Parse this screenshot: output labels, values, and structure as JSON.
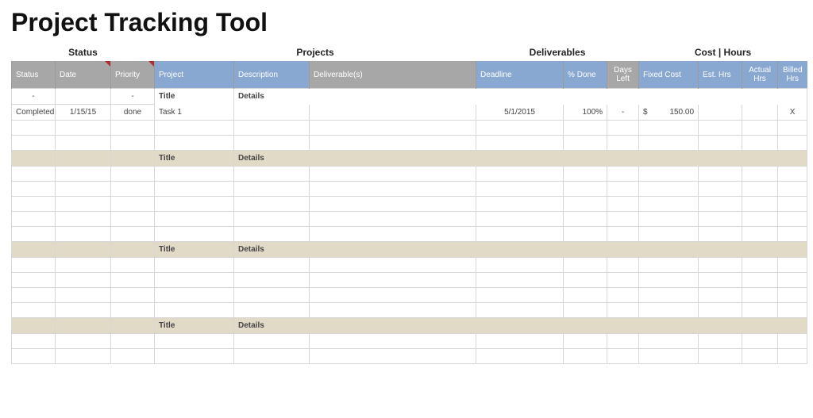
{
  "title": "Project Tracking Tool",
  "sections": {
    "status": "Status",
    "projects": "Projects",
    "deliverables": "Deliverables",
    "costhours": "Cost | Hours"
  },
  "headers": {
    "status": "Status",
    "date": "Date",
    "priority": "Priority",
    "project": "Project",
    "description": "Description",
    "deliverables": "Deliverable(s)",
    "deadline": "Deadline",
    "pdone": "% Done",
    "daysleft": "Days Left",
    "fixedcost": "Fixed Cost",
    "esthrs": "Est. Hrs",
    "acthrs": "Actual Hrs",
    "billhrs": "Billed Hrs"
  },
  "group_title_label": "Title",
  "group_details_label": "Details",
  "placeholder_dash": "-",
  "task_row": {
    "status": "Completed",
    "date": "1/15/15",
    "priority": "done",
    "project": "Task 1",
    "deadline": "5/1/2015",
    "pdone": "100%",
    "daysleft": "-",
    "fixedcost_sym": "$",
    "fixedcost_val": "150.00",
    "billhrs": "X"
  },
  "colors": {
    "header_gray": "#a7a7a7",
    "header_blue": "#88a7d1",
    "tan": "#e0dac7",
    "grid": "#d7d7d7",
    "notch": "#b02e2e"
  }
}
